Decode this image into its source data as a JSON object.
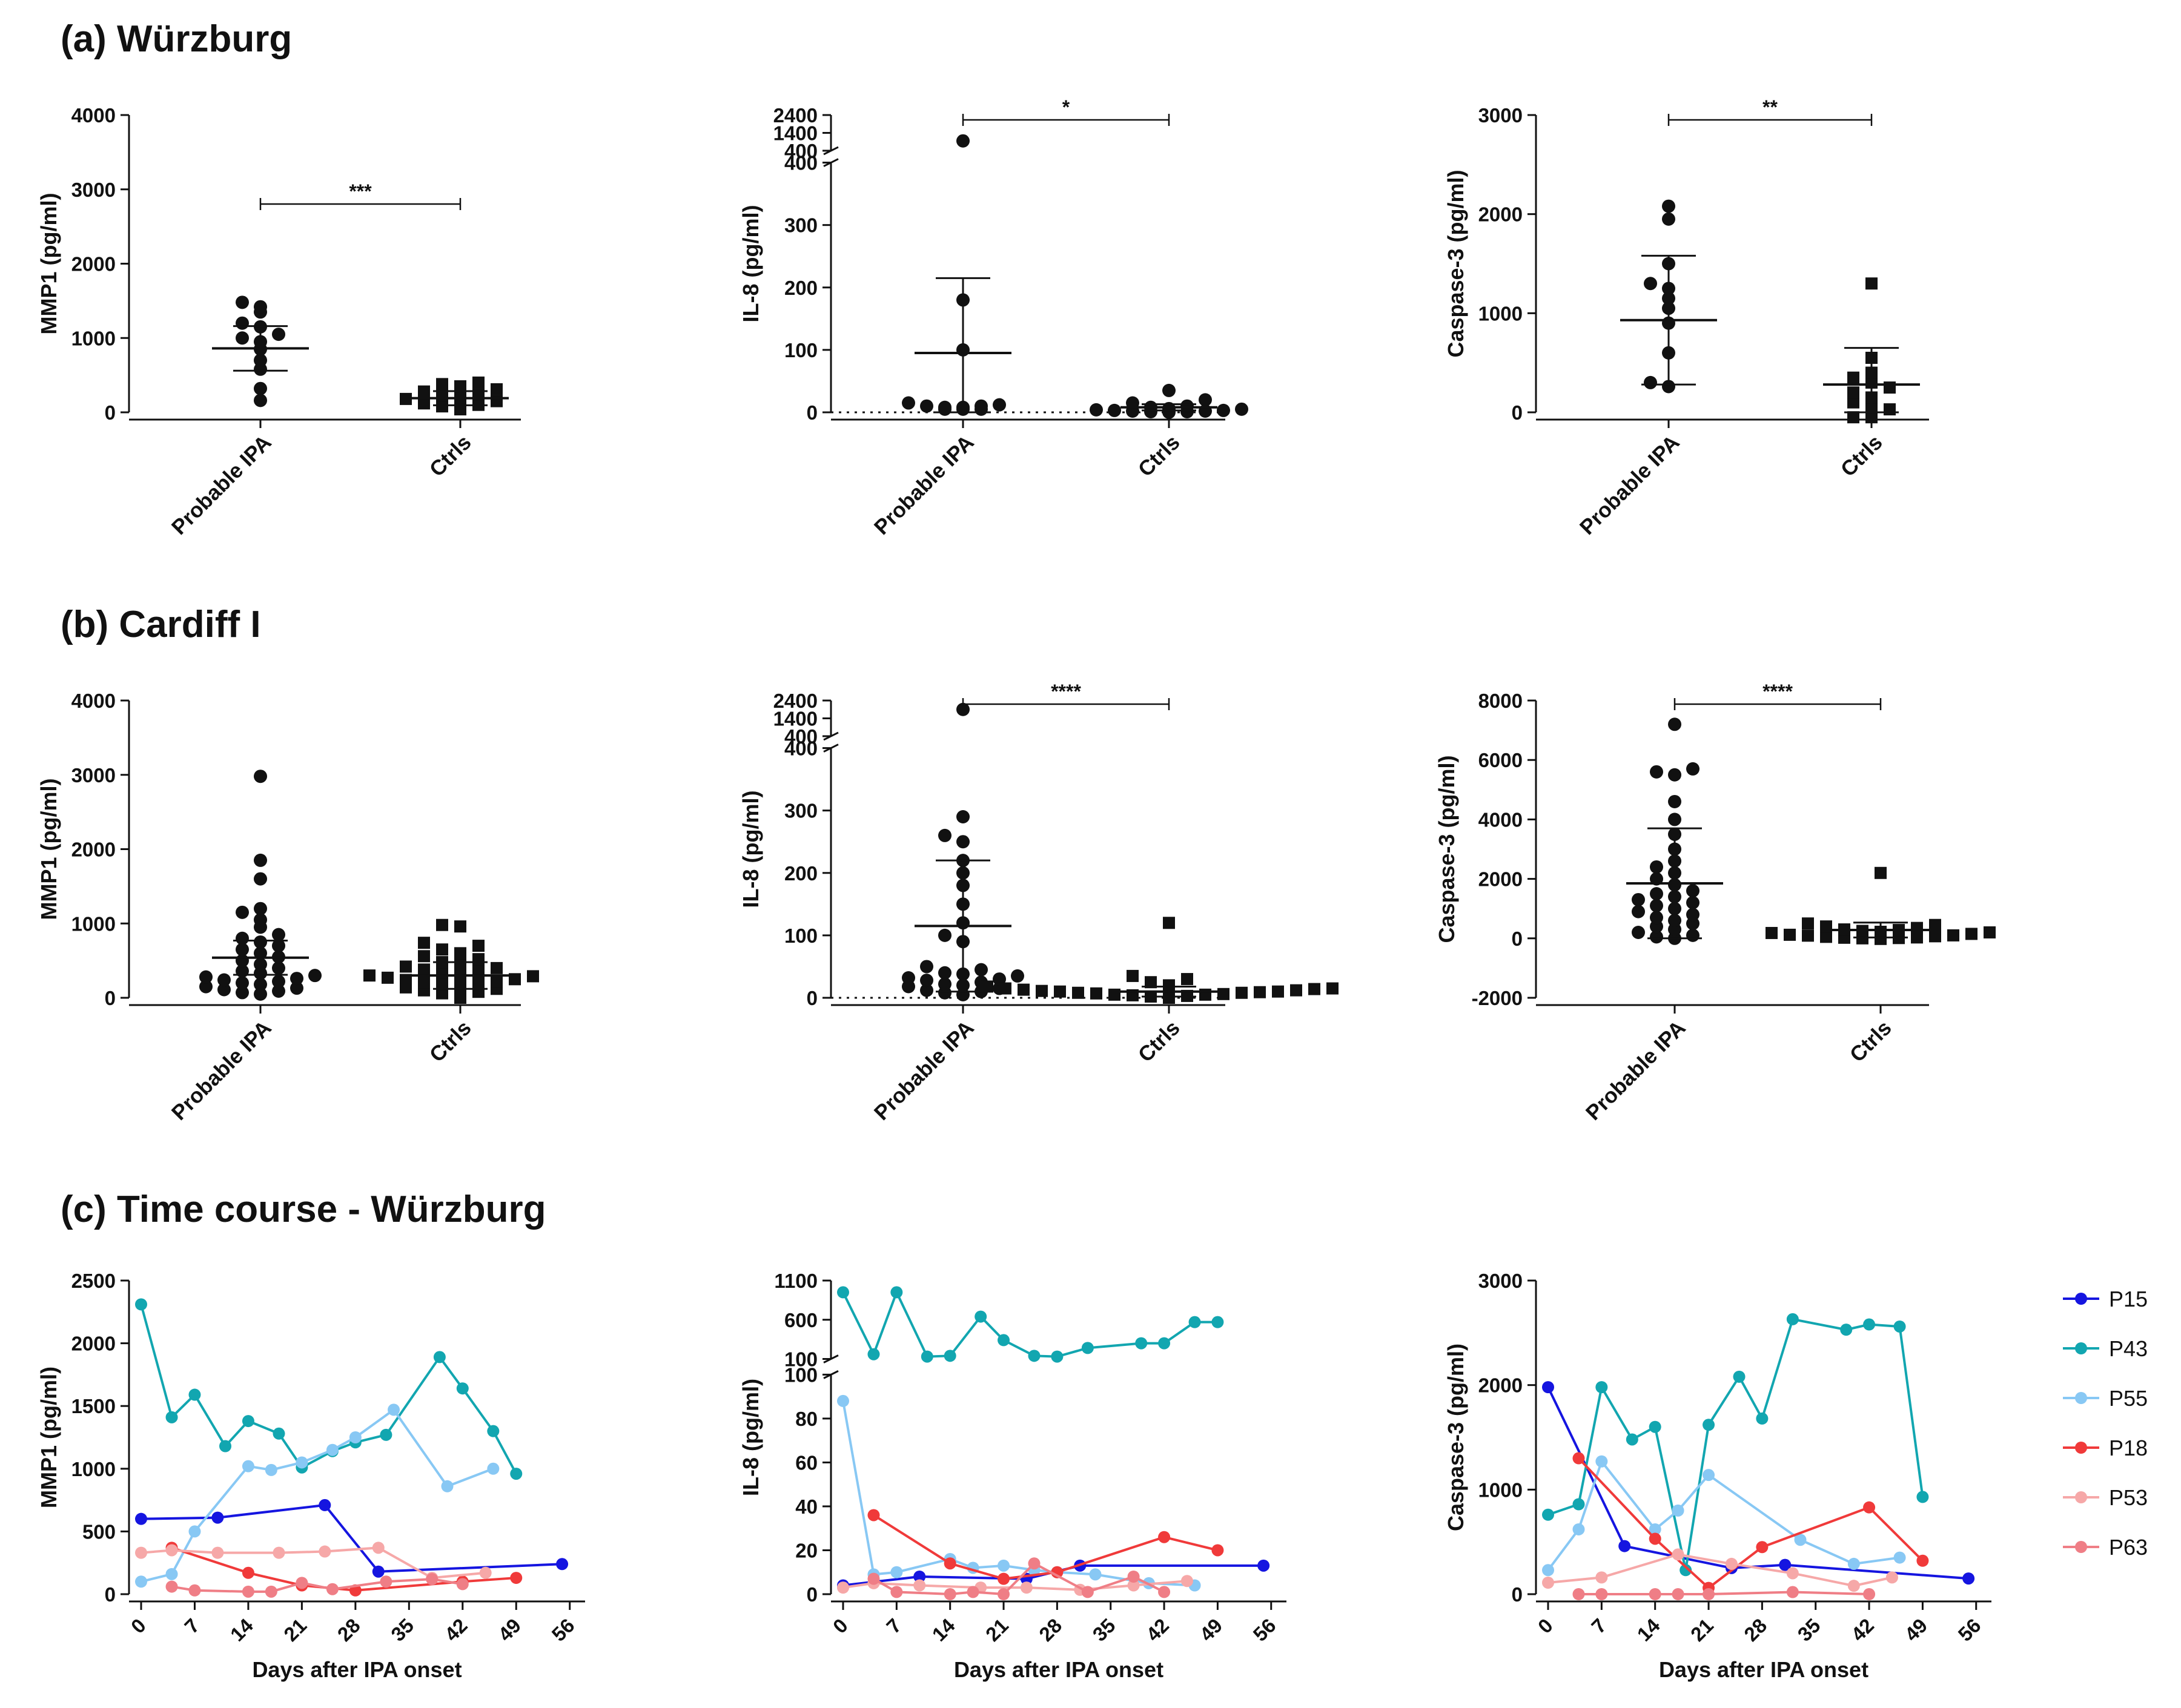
{
  "sections": [
    {
      "label": "(a) Würzburg"
    },
    {
      "label": "(b) Cardiff I"
    },
    {
      "label": "(c) Time course - Würzburg"
    }
  ],
  "colors": {
    "P15": "#1515e0",
    "P43": "#12a6b0",
    "P55": "#88c8f4",
    "P18": "#f03a3a",
    "P53": "#f6a8a8",
    "P63": "#ef7e86",
    "ink": "#111111"
  },
  "chart_data": [
    {
      "type": "scatter",
      "panel": "a1",
      "ylabel": "MMP1 (pg/ml)",
      "yticks": [
        "0",
        "1000",
        "2000",
        "3000",
        "4000"
      ],
      "ylim": [
        0,
        4000
      ],
      "categories": [
        "Probable IPA",
        "Ctrls"
      ],
      "markers": [
        "circle",
        "square"
      ],
      "significance": "***",
      "groups": [
        {
          "mean": 860,
          "sd": 300,
          "values": [
            160,
            320,
            580,
            700,
            850,
            950,
            1000,
            1050,
            1150,
            1200,
            1350,
            1420,
            1480
          ]
        },
        {
          "mean": 190,
          "sd": 95,
          "values": [
            40,
            60,
            80,
            100,
            120,
            150,
            180,
            200,
            220,
            240,
            280,
            310,
            350,
            380,
            400
          ]
        }
      ]
    },
    {
      "type": "scatter",
      "panel": "a2",
      "ylabel": "IL-8 (pg/ml)",
      "yticks": [
        "0",
        "100",
        "200",
        "300",
        "400",
        "400",
        "1400",
        "2400"
      ],
      "ylim": [
        0,
        2400
      ],
      "categories": [
        "Probable IPA",
        "Ctrls"
      ],
      "markers": [
        "circle",
        "circle"
      ],
      "significance": "*",
      "groups": [
        {
          "mean": 95,
          "sd": 120,
          "values": [
            5,
            5,
            5,
            8,
            8,
            10,
            10,
            12,
            15,
            100,
            180,
            950
          ]
        },
        {
          "mean": 8,
          "sd": 5,
          "values": [
            0,
            1,
            1,
            2,
            2,
            3,
            3,
            4,
            5,
            6,
            8,
            10,
            15,
            20,
            35
          ]
        }
      ]
    },
    {
      "type": "scatter",
      "panel": "a3",
      "ylabel": "Caspase-3 (pg/ml)",
      "yticks": [
        "0",
        "1000",
        "2000",
        "3000"
      ],
      "ylim": [
        0,
        3000
      ],
      "categories": [
        "Probable IPA",
        "Ctrls"
      ],
      "markers": [
        "circle",
        "square"
      ],
      "significance": "**",
      "groups": [
        {
          "mean": 930,
          "sd": 650,
          "values": [
            260,
            300,
            600,
            900,
            1050,
            1150,
            1250,
            1300,
            1500,
            1950,
            2080
          ]
        },
        {
          "mean": 280,
          "sd": 370,
          "values": [
            -50,
            -50,
            30,
            50,
            100,
            150,
            200,
            250,
            300,
            350,
            400,
            550,
            1300
          ]
        }
      ]
    },
    {
      "type": "scatter",
      "panel": "b1",
      "ylabel": "MMP1 (pg/ml)",
      "yticks": [
        "0",
        "1000",
        "2000",
        "3000",
        "4000"
      ],
      "ylim": [
        0,
        4000
      ],
      "categories": [
        "Probable IPA",
        "Ctrls"
      ],
      "markers": [
        "circle",
        "square"
      ],
      "significance": "",
      "groups": [
        {
          "mean": 540,
          "sd": 230,
          "values": [
            50,
            70,
            90,
            110,
            130,
            150,
            180,
            200,
            220,
            240,
            260,
            280,
            300,
            330,
            360,
            400,
            450,
            500,
            550,
            600,
            650,
            700,
            750,
            800,
            850,
            950,
            1050,
            1150,
            1200,
            1600,
            1850,
            2980
          ]
        },
        {
          "mean": 300,
          "sd": 180,
          "values": [
            0,
            40,
            60,
            80,
            100,
            120,
            140,
            160,
            180,
            200,
            210,
            220,
            240,
            250,
            270,
            290,
            300,
            320,
            340,
            360,
            380,
            400,
            420,
            450,
            480,
            520,
            560,
            600,
            650,
            700,
            740,
            960,
            980
          ]
        }
      ]
    },
    {
      "type": "scatter",
      "panel": "b2",
      "ylabel": "IL-8 (pg/ml)",
      "yticks": [
        "0",
        "100",
        "200",
        "300",
        "400",
        "400",
        "1400",
        "2400"
      ],
      "ylim": [
        0,
        2400
      ],
      "categories": [
        "Probable IPA",
        "Ctrls"
      ],
      "markers": [
        "circle",
        "square"
      ],
      "significance": "****",
      "groups": [
        {
          "mean": 115,
          "sd": 105,
          "values": [
            5,
            8,
            10,
            12,
            15,
            18,
            20,
            22,
            25,
            28,
            30,
            32,
            35,
            38,
            40,
            45,
            50,
            90,
            100,
            120,
            150,
            180,
            200,
            220,
            250,
            260,
            290,
            1900
          ]
        },
        {
          "mean": 10,
          "sd": 8,
          "values": [
            0,
            1,
            2,
            3,
            4,
            5,
            5,
            6,
            7,
            8,
            8,
            9,
            10,
            10,
            11,
            12,
            13,
            14,
            15,
            15,
            18,
            20,
            25,
            30,
            35,
            120
          ]
        }
      ]
    },
    {
      "type": "scatter",
      "panel": "b3",
      "ylabel": "Caspase-3 (pg/ml)",
      "yticks": [
        "-2000",
        "0",
        "2000",
        "4000",
        "6000",
        "8000"
      ],
      "ylim": [
        -2000,
        8000
      ],
      "categories": [
        "Probable IPA",
        "Ctrls"
      ],
      "markers": [
        "circle",
        "square"
      ],
      "significance": "****",
      "groups": [
        {
          "mean": 1850,
          "sd": 1850,
          "values": [
            0,
            50,
            100,
            200,
            300,
            400,
            500,
            600,
            700,
            800,
            900,
            1000,
            1100,
            1200,
            1300,
            1400,
            1500,
            1600,
            1800,
            2000,
            2200,
            2400,
            2600,
            3000,
            3500,
            4000,
            4600,
            5500,
            5600,
            5700,
            7200
          ]
        },
        {
          "mean": 280,
          "sd": 250,
          "values": [
            -20,
            0,
            10,
            20,
            30,
            50,
            70,
            90,
            100,
            120,
            150,
            180,
            200,
            220,
            250,
            280,
            300,
            350,
            400,
            450,
            500,
            2200
          ]
        }
      ]
    },
    {
      "type": "line",
      "panel": "c1",
      "ylabel": "MMP1 (pg/ml)",
      "xlabel": "Days after IPA onset",
      "xticks": [
        "0",
        "7",
        "14",
        "21",
        "28",
        "35",
        "42",
        "49",
        "56"
      ],
      "xlim": [
        0,
        58
      ],
      "yticks": [
        "0",
        "500",
        "1000",
        "1500",
        "2000",
        "2500"
      ],
      "ylim": [
        0,
        2500
      ],
      "series": [
        {
          "name": "P15",
          "x": [
            0,
            10,
            24,
            31,
            55
          ],
          "y": [
            600,
            610,
            710,
            180,
            240
          ]
        },
        {
          "name": "P43",
          "x": [
            0,
            4,
            7,
            11,
            14,
            18,
            21,
            25,
            28,
            32,
            39,
            42,
            46,
            49
          ],
          "y": [
            2310,
            1410,
            1590,
            1180,
            1380,
            1280,
            1010,
            1140,
            1210,
            1270,
            1890,
            1640,
            1300,
            960
          ]
        },
        {
          "name": "P55",
          "x": [
            0,
            4,
            7,
            14,
            17,
            21,
            25,
            28,
            33,
            40,
            46
          ],
          "y": [
            100,
            160,
            500,
            1020,
            990,
            1050,
            1150,
            1250,
            1470,
            860,
            1000
          ]
        },
        {
          "name": "P18",
          "x": [
            4,
            14,
            21,
            28,
            42,
            49
          ],
          "y": [
            370,
            170,
            70,
            30,
            100,
            130
          ]
        },
        {
          "name": "P53",
          "x": [
            0,
            4,
            10,
            18,
            24,
            31,
            38,
            45
          ],
          "y": [
            330,
            350,
            330,
            330,
            340,
            370,
            130,
            170
          ]
        },
        {
          "name": "P63",
          "x": [
            4,
            7,
            14,
            17,
            21,
            25,
            32,
            38,
            42
          ],
          "y": [
            60,
            30,
            20,
            20,
            90,
            40,
            100,
            120,
            80
          ]
        }
      ]
    },
    {
      "type": "line",
      "panel": "c2",
      "ylabel": "IL-8 (pg/ml)",
      "xlabel": "Days after IPA onset",
      "xticks": [
        "0",
        "7",
        "14",
        "21",
        "28",
        "35",
        "42",
        "49",
        "56"
      ],
      "xlim": [
        0,
        58
      ],
      "yticks": [
        "0",
        "20",
        "40",
        "60",
        "80",
        "100",
        "100",
        "600",
        "1100"
      ],
      "ylim": [
        0,
        1100
      ],
      "series": [
        {
          "name": "P15",
          "x": [
            0,
            10,
            24,
            31,
            55
          ],
          "y": [
            4,
            8,
            7,
            13,
            13
          ]
        },
        {
          "name": "P43",
          "x": [
            0,
            4,
            7,
            11,
            14,
            18,
            21,
            25,
            28,
            32,
            39,
            42,
            46,
            49
          ],
          "y": [
            950,
            160,
            950,
            130,
            140,
            640,
            340,
            140,
            130,
            240,
            300,
            300,
            570,
            570
          ]
        },
        {
          "name": "P55",
          "x": [
            0,
            4,
            7,
            14,
            17,
            21,
            25,
            28,
            33,
            40,
            46
          ],
          "y": [
            88,
            9,
            10,
            16,
            12,
            13,
            11,
            10,
            9,
            5,
            4
          ]
        },
        {
          "name": "P18",
          "x": [
            4,
            14,
            21,
            28,
            42,
            49
          ],
          "y": [
            36,
            14,
            7,
            10,
            26,
            20
          ]
        },
        {
          "name": "P53",
          "x": [
            0,
            4,
            10,
            18,
            24,
            31,
            38,
            45
          ],
          "y": [
            3,
            5,
            4,
            3,
            3,
            2,
            4,
            6
          ]
        },
        {
          "name": "P63",
          "x": [
            4,
            7,
            14,
            17,
            21,
            25,
            32,
            38,
            42
          ],
          "y": [
            7,
            1,
            0,
            1,
            0,
            14,
            1,
            8,
            1
          ]
        }
      ]
    },
    {
      "type": "line",
      "panel": "c3",
      "ylabel": "Caspase-3 (pg/ml)",
      "xlabel": "Days after IPA onset",
      "xticks": [
        "0",
        "7",
        "14",
        "21",
        "28",
        "35",
        "42",
        "49",
        "56"
      ],
      "xlim": [
        0,
        58
      ],
      "yticks": [
        "0",
        "1000",
        "2000",
        "3000"
      ],
      "ylim": [
        0,
        3000
      ],
      "series": [
        {
          "name": "P15",
          "x": [
            0,
            10,
            24,
            31,
            55
          ],
          "y": [
            1980,
            460,
            250,
            280,
            150
          ]
        },
        {
          "name": "P43",
          "x": [
            0,
            4,
            7,
            11,
            14,
            18,
            21,
            25,
            28,
            32,
            39,
            42,
            46,
            49
          ],
          "y": [
            760,
            860,
            1980,
            1480,
            1600,
            230,
            1620,
            2080,
            1680,
            2630,
            2530,
            2580,
            2560,
            930
          ]
        },
        {
          "name": "P55",
          "x": [
            0,
            4,
            7,
            14,
            17,
            21,
            33,
            40,
            46
          ],
          "y": [
            230,
            620,
            1270,
            620,
            800,
            1140,
            520,
            290,
            350
          ]
        },
        {
          "name": "P18",
          "x": [
            4,
            14,
            21,
            28,
            42,
            49
          ],
          "y": [
            1300,
            530,
            60,
            450,
            830,
            320
          ]
        },
        {
          "name": "P53",
          "x": [
            0,
            7,
            17,
            24,
            32,
            40,
            45
          ],
          "y": [
            110,
            160,
            380,
            290,
            200,
            80,
            160
          ]
        },
        {
          "name": "P63",
          "x": [
            4,
            7,
            14,
            17,
            21,
            32,
            42
          ],
          "y": [
            0,
            0,
            0,
            0,
            0,
            20,
            0
          ]
        }
      ]
    }
  ]
}
